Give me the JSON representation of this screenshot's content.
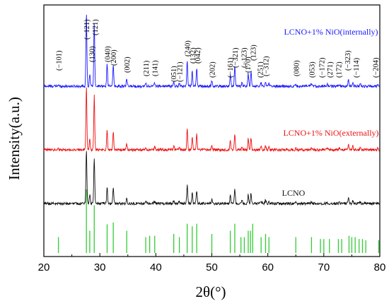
{
  "chart_data": {
    "type": "line",
    "xlabel": "2θ(°)",
    "ylabel": "Intensity(a.u.)",
    "xlim": [
      20,
      80
    ],
    "xticks": [
      20,
      30,
      40,
      50,
      60,
      70,
      80
    ],
    "xtick_labels": [
      "20",
      "30",
      "40",
      "50",
      "60",
      "70",
      "80"
    ],
    "y_ticks_shown": false,
    "grid": false,
    "series": [
      {
        "name": "LCNO+1% NiO(internally)",
        "color": "#1a1aff",
        "offset": 3.0,
        "baseline": 0.0,
        "noise": 0.018
      },
      {
        "name": "LCNO+1% NiO(externally)",
        "color": "#ee1111",
        "offset": 1.9,
        "baseline": 0.0,
        "noise": 0.018
      },
      {
        "name": "LCNO",
        "color": "#111111",
        "offset": 0.85,
        "baseline": 0.0,
        "noise": 0.018
      }
    ],
    "peaks": [
      {
        "x": 22.6,
        "h": 0.02
      },
      {
        "x": 27.6,
        "h": 1.05
      },
      {
        "x": 28.2,
        "h": 0.18
      },
      {
        "x": 29.0,
        "h": 0.9
      },
      {
        "x": 31.3,
        "h": 0.32
      },
      {
        "x": 32.4,
        "h": 0.3
      },
      {
        "x": 34.8,
        "h": 0.1
      },
      {
        "x": 38.2,
        "h": 0.04
      },
      {
        "x": 39.8,
        "h": 0.05
      },
      {
        "x": 43.2,
        "h": 0.06
      },
      {
        "x": 44.2,
        "h": 0.05
      },
      {
        "x": 45.6,
        "h": 0.36
      },
      {
        "x": 46.5,
        "h": 0.22
      },
      {
        "x": 47.3,
        "h": 0.26
      },
      {
        "x": 50.0,
        "h": 0.08
      },
      {
        "x": 53.3,
        "h": 0.16
      },
      {
        "x": 54.1,
        "h": 0.28
      },
      {
        "x": 55.4,
        "h": 0.05
      },
      {
        "x": 56.5,
        "h": 0.18
      },
      {
        "x": 57.0,
        "h": 0.2
      },
      {
        "x": 58.8,
        "h": 0.05
      },
      {
        "x": 59.6,
        "h": 0.07
      },
      {
        "x": 60.2,
        "h": 0.05
      },
      {
        "x": 65.0,
        "h": 0.03
      },
      {
        "x": 67.8,
        "h": 0.04
      },
      {
        "x": 70.6,
        "h": 0.03
      },
      {
        "x": 72.8,
        "h": 0.03
      },
      {
        "x": 74.4,
        "h": 0.1
      },
      {
        "x": 75.2,
        "h": 0.06
      },
      {
        "x": 76.5,
        "h": 0.04
      },
      {
        "x": 79.6,
        "h": 0.02
      }
    ],
    "reference_lines": {
      "color": "#33cc33",
      "positions": [
        {
          "x": 22.6,
          "h": 0.25
        },
        {
          "x": 27.6,
          "h": 1.0
        },
        {
          "x": 28.2,
          "h": 0.35
        },
        {
          "x": 29.0,
          "h": 0.75
        },
        {
          "x": 31.3,
          "h": 0.45
        },
        {
          "x": 32.4,
          "h": 0.48
        },
        {
          "x": 34.8,
          "h": 0.35
        },
        {
          "x": 38.2,
          "h": 0.25
        },
        {
          "x": 38.9,
          "h": 0.27
        },
        {
          "x": 39.8,
          "h": 0.27
        },
        {
          "x": 43.2,
          "h": 0.3
        },
        {
          "x": 44.2,
          "h": 0.25
        },
        {
          "x": 45.6,
          "h": 0.46
        },
        {
          "x": 46.5,
          "h": 0.42
        },
        {
          "x": 47.3,
          "h": 0.46
        },
        {
          "x": 50.0,
          "h": 0.3
        },
        {
          "x": 53.3,
          "h": 0.35
        },
        {
          "x": 54.1,
          "h": 0.46
        },
        {
          "x": 55.2,
          "h": 0.25
        },
        {
          "x": 55.8,
          "h": 0.25
        },
        {
          "x": 56.5,
          "h": 0.35
        },
        {
          "x": 56.9,
          "h": 0.35
        },
        {
          "x": 57.3,
          "h": 0.46
        },
        {
          "x": 58.8,
          "h": 0.25
        },
        {
          "x": 59.6,
          "h": 0.3
        },
        {
          "x": 60.2,
          "h": 0.25
        },
        {
          "x": 65.0,
          "h": 0.25
        },
        {
          "x": 67.8,
          "h": 0.25
        },
        {
          "x": 69.4,
          "h": 0.22
        },
        {
          "x": 70.0,
          "h": 0.22
        },
        {
          "x": 71.0,
          "h": 0.22
        },
        {
          "x": 72.6,
          "h": 0.22
        },
        {
          "x": 73.2,
          "h": 0.22
        },
        {
          "x": 74.5,
          "h": 0.27
        },
        {
          "x": 75.0,
          "h": 0.25
        },
        {
          "x": 75.6,
          "h": 0.25
        },
        {
          "x": 76.3,
          "h": 0.22
        },
        {
          "x": 76.9,
          "h": 0.22
        },
        {
          "x": 77.5,
          "h": 0.2
        },
        {
          "x": 79.8,
          "h": 0.2
        }
      ]
    },
    "hkl_labels": [
      {
        "text": "(−101)",
        "x": 22.6
      },
      {
        "text": "(−121)",
        "x": 27.6
      },
      {
        "text": "(130)",
        "x": 28.5
      },
      {
        "text": "(121)",
        "x": 29.1
      },
      {
        "text": "(040)",
        "x": 31.3
      },
      {
        "text": "(200)",
        "x": 32.4
      },
      {
        "text": "(002)",
        "x": 34.8
      },
      {
        "text": "(211)",
        "x": 38.2
      },
      {
        "text": "(141)",
        "x": 39.8
      },
      {
        "text": "(051)",
        "x": 43.1
      },
      {
        "text": "(−121)",
        "x": 44.2
      },
      {
        "text": "(240)",
        "x": 45.6
      },
      {
        "text": "(132)",
        "x": 46.5
      },
      {
        "text": "(042)",
        "x": 47.4
      },
      {
        "text": "(202)",
        "x": 50.0
      },
      {
        "text": "(−161)",
        "x": 53.2
      },
      {
        "text": "(−321)",
        "x": 54.1
      },
      {
        "text": "(−123)",
        "x": 55.7
      },
      {
        "text": "(170)",
        "x": 56.4
      },
      {
        "text": "(123)",
        "x": 57.3
      },
      {
        "text": "(251)",
        "x": 58.6
      },
      {
        "text": "(−312)",
        "x": 59.6
      },
      {
        "text": "(080)",
        "x": 65.0
      },
      {
        "text": "(053)",
        "x": 67.8
      },
      {
        "text": "(−172)",
        "x": 69.6
      },
      {
        "text": "(271)",
        "x": 71.0
      },
      {
        "text": "(172)",
        "x": 72.6
      },
      {
        "text": "(−323)",
        "x": 74.2
      },
      {
        "text": "(−114)",
        "x": 75.7
      },
      {
        "text": "(−204)",
        "x": 79.2
      }
    ]
  }
}
